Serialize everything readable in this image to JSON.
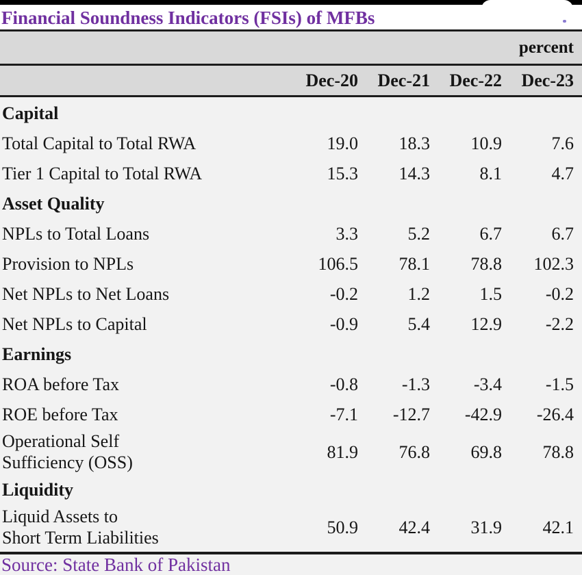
{
  "title": "Financial Soundness Indicators (FSIs) of MFBs",
  "unit_label": "percent",
  "columns": [
    "Dec-20",
    "Dec-21",
    "Dec-22",
    "Dec-23"
  ],
  "sections": [
    {
      "header": "Capital",
      "rows": [
        {
          "label": "Total Capital to Total RWA",
          "values": [
            "19.0",
            "18.3",
            "10.9",
            "7.6"
          ]
        },
        {
          "label": "Tier 1 Capital to Total RWA",
          "values": [
            "15.3",
            "14.3",
            "8.1",
            "4.7"
          ]
        }
      ]
    },
    {
      "header": "Asset Quality",
      "rows": [
        {
          "label": "NPLs to Total Loans",
          "values": [
            "3.3",
            "5.2",
            "6.7",
            "6.7"
          ]
        },
        {
          "label": "Provision to NPLs",
          "values": [
            "106.5",
            "78.1",
            "78.8",
            "102.3"
          ]
        },
        {
          "label": "Net NPLs to Net Loans",
          "values": [
            "-0.2",
            "1.2",
            "1.5",
            "-0.2"
          ]
        },
        {
          "label": "Net NPLs to Capital",
          "values": [
            "-0.9",
            "5.4",
            "12.9",
            "-2.2"
          ]
        }
      ]
    },
    {
      "header": "Earnings",
      "rows": [
        {
          "label": "ROA before Tax",
          "values": [
            "-0.8",
            "-1.3",
            "-3.4",
            "-1.5"
          ]
        },
        {
          "label": "ROE before Tax",
          "values": [
            "-7.1",
            "-12.7",
            "-42.9",
            "-26.4"
          ]
        },
        {
          "label": "Operational Self\nSufficiency (OSS)",
          "values": [
            "81.9",
            "76.8",
            "69.8",
            "78.8"
          ],
          "two_line": true
        }
      ]
    },
    {
      "header": "Liquidity",
      "rows": [
        {
          "label": "Liquid Assets to\nShort Term Liabilities",
          "values": [
            "50.9",
            "42.4",
            "31.9",
            "42.1"
          ],
          "two_line": true
        }
      ]
    }
  ],
  "source": "Source: State Bank of Pakistan",
  "colors": {
    "title_text": "#7030a0",
    "source_text": "#7030a0",
    "header_band": "#d9d9d9",
    "body_background": "#f2f2f2",
    "border": "#1c1c1c",
    "top_strip": "#000000"
  }
}
